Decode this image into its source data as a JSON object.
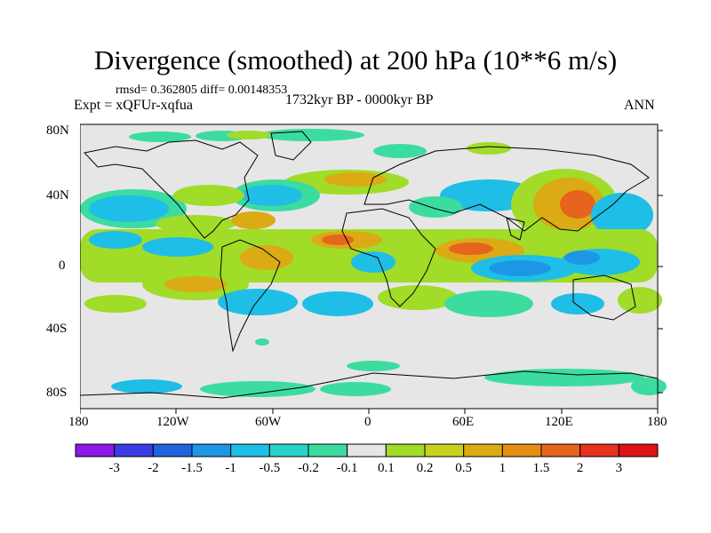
{
  "title": "Divergence (smoothed) at 200 hPa (10**6 m/s)",
  "stats": "rmsd= 0.362805 diff= 0.00148353",
  "experiment": "Expt = xQFUr-xqfua",
  "period": "1732kyr BP - 0000kyr BP",
  "season": "ANN",
  "y_labels": [
    "80N",
    "40N",
    "0",
    "40S",
    "80S"
  ],
  "x_labels": [
    "180",
    "120W",
    "60W",
    "0",
    "60E",
    "120E",
    "180"
  ],
  "colorbar": {
    "labels": [
      "-3",
      "-2",
      "-1.5",
      "-1",
      "-0.5",
      "-0.2",
      "-0.1",
      "0.1",
      "0.2",
      "0.5",
      "1",
      "1.5",
      "2",
      "3"
    ],
    "colors": [
      "#8c1ae6",
      "#3c3ce6",
      "#1e64dc",
      "#1e96e6",
      "#1ebee6",
      "#28d2c8",
      "#3cdca0",
      "#e6e6e6",
      "#a0dc28",
      "#c8d21e",
      "#dcaa14",
      "#e68c14",
      "#e6641e",
      "#e6321e",
      "#dc1414"
    ]
  },
  "colors": {
    "background_map": "#e6e6e6",
    "neg_strong": "#1e96e6",
    "neg_mid": "#1ebee6",
    "neg_weak": "#3cdca0",
    "pos_weak": "#a0dc28",
    "pos_mid": "#dcaa14",
    "pos_strong": "#e6641e"
  }
}
